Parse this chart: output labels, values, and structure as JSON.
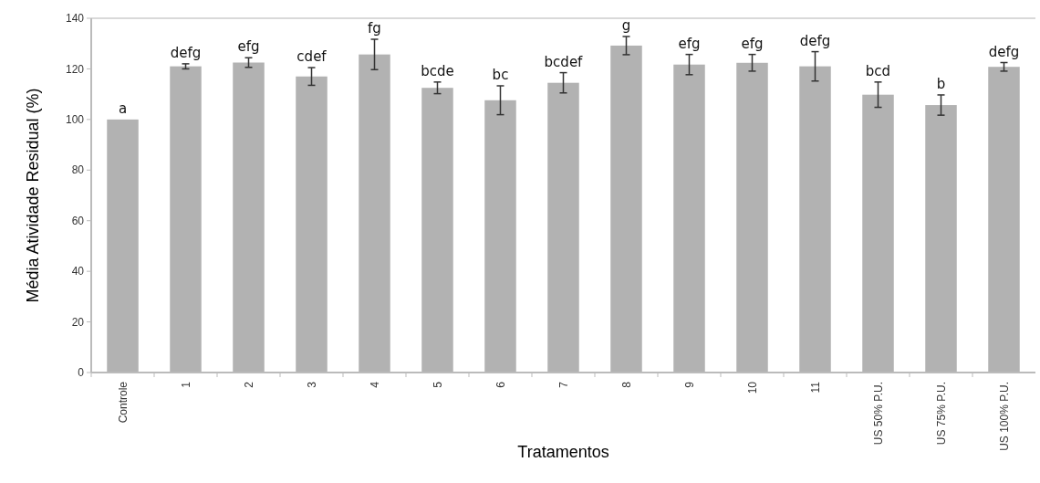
{
  "chart_data": {
    "type": "bar",
    "xlabel": "Tratamentos",
    "ylabel": "Média Atividade Residual (%)",
    "categories": [
      "Controle",
      "1",
      "2",
      "3",
      "4",
      "5",
      "6",
      "7",
      "8",
      "9",
      "10",
      "11",
      "US 50% P.U.",
      "US 75% P.U.",
      "US 100% P.U."
    ],
    "values": [
      100,
      121,
      122.5,
      117,
      125.7,
      112.5,
      107.6,
      114.5,
      129.2,
      121.7,
      122.4,
      121,
      109.8,
      105.7,
      120.8
    ],
    "errors": [
      null,
      1,
      1.9,
      3.5,
      6,
      2.3,
      5.7,
      4,
      3.6,
      4,
      3.3,
      5.8,
      5,
      4,
      1.7
    ],
    "color": "#b2b2b2",
    "ylim": [
      0,
      140
    ],
    "yticks": [
      0,
      20,
      40,
      60,
      80,
      100,
      120,
      140
    ],
    "annotations": [
      {
        "text": "a",
        "x": "Controle",
        "y": 100
      },
      {
        "text": "defg",
        "x": "1",
        "y": 122
      },
      {
        "text": "efg",
        "x": "2",
        "y": 124.4
      },
      {
        "text": "cdef",
        "x": "3",
        "y": 120.5
      },
      {
        "text": "fg",
        "x": "4",
        "y": 131.7
      },
      {
        "text": "bcde",
        "x": "5",
        "y": 114.8
      },
      {
        "text": "bc",
        "x": "6",
        "y": 113.3
      },
      {
        "text": "bcdef",
        "x": "7",
        "y": 118.5
      },
      {
        "text": "g",
        "x": "8",
        "y": 132.8
      },
      {
        "text": "efg",
        "x": "9",
        "y": 125.7
      },
      {
        "text": "efg",
        "x": "10",
        "y": 125.7
      },
      {
        "text": "defg",
        "x": "11",
        "y": 126.8
      },
      {
        "text": "bcd",
        "x": "US 50% P.U.",
        "y": 114.8
      },
      {
        "text": "b",
        "x": "US 75% P.U.",
        "y": 109.7
      },
      {
        "text": "defg",
        "x": "US 100% P.U.",
        "y": 122.5
      }
    ]
  }
}
